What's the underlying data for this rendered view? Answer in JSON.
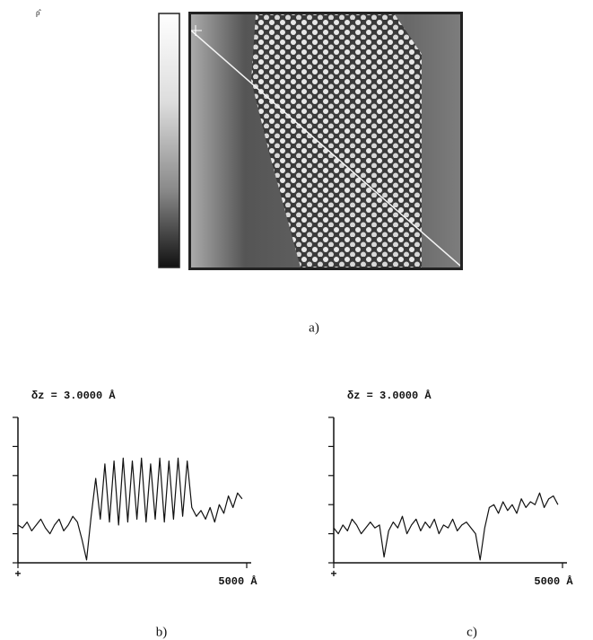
{
  "panel_labels": {
    "a": "a)",
    "b": "b)",
    "c": "c)"
  },
  "chart_data": [
    {
      "type": "line",
      "annotation": "δz = 3.0000 Å",
      "color": "#111111",
      "xlim": [
        0,
        5000
      ],
      "ylim": [
        0,
        5
      ],
      "xticks": [
        {
          "value": 0,
          "label": "+"
        },
        {
          "value": 5000,
          "label": "5000 Å"
        }
      ],
      "yticks": [
        0,
        1,
        2,
        3,
        4,
        5
      ],
      "x": [
        0,
        100,
        200,
        300,
        400,
        500,
        600,
        700,
        800,
        900,
        1000,
        1100,
        1200,
        1300,
        1400,
        1500,
        1600,
        1700,
        1800,
        1900,
        2000,
        2100,
        2200,
        2300,
        2400,
        2500,
        2600,
        2700,
        2800,
        2900,
        3000,
        3100,
        3200,
        3300,
        3400,
        3500,
        3600,
        3700,
        3800,
        3900,
        4000,
        4100,
        4200,
        4300,
        4400,
        4500,
        4600,
        4700,
        4800,
        4900
      ],
      "values": [
        1.3,
        1.2,
        1.4,
        1.1,
        1.3,
        1.5,
        1.2,
        1.0,
        1.3,
        1.5,
        1.1,
        1.3,
        1.6,
        1.4,
        0.8,
        0.1,
        1.6,
        2.9,
        1.5,
        3.4,
        1.4,
        3.5,
        1.3,
        3.6,
        1.4,
        3.5,
        1.5,
        3.6,
        1.4,
        3.4,
        1.5,
        3.6,
        1.4,
        3.5,
        1.5,
        3.6,
        1.6,
        3.5,
        1.9,
        1.6,
        1.8,
        1.5,
        1.9,
        1.4,
        2.0,
        1.7,
        2.3,
        1.9,
        2.4,
        2.2
      ]
    },
    {
      "type": "line",
      "annotation": "δz = 3.0000 Å",
      "color": "#111111",
      "xlim": [
        0,
        5000
      ],
      "ylim": [
        0,
        5
      ],
      "xticks": [
        {
          "value": 0,
          "label": "+"
        },
        {
          "value": 5000,
          "label": "5000 Å"
        }
      ],
      "yticks": [
        0,
        1,
        2,
        3,
        4,
        5
      ],
      "x": [
        0,
        100,
        200,
        300,
        400,
        500,
        600,
        700,
        800,
        900,
        1000,
        1100,
        1200,
        1300,
        1400,
        1500,
        1600,
        1700,
        1800,
        1900,
        2000,
        2100,
        2200,
        2300,
        2400,
        2500,
        2600,
        2700,
        2800,
        2900,
        3000,
        3100,
        3200,
        3300,
        3400,
        3500,
        3600,
        3700,
        3800,
        3900,
        4000,
        4100,
        4200,
        4300,
        4400,
        4500,
        4600,
        4700,
        4800,
        4900
      ],
      "values": [
        1.2,
        1.0,
        1.3,
        1.1,
        1.5,
        1.3,
        1.0,
        1.2,
        1.4,
        1.2,
        1.3,
        0.2,
        1.1,
        1.4,
        1.2,
        1.6,
        1.0,
        1.3,
        1.5,
        1.1,
        1.4,
        1.2,
        1.5,
        1.0,
        1.3,
        1.2,
        1.5,
        1.1,
        1.3,
        1.4,
        1.2,
        1.0,
        0.1,
        1.2,
        1.9,
        2.0,
        1.7,
        2.1,
        1.8,
        2.0,
        1.7,
        2.2,
        1.9,
        2.1,
        2.0,
        2.4,
        1.9,
        2.2,
        2.3,
        2.0
      ]
    }
  ]
}
